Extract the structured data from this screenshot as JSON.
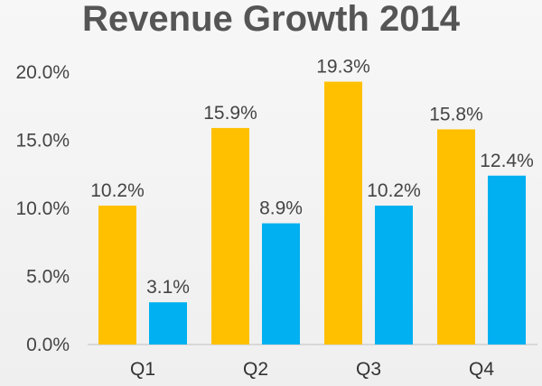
{
  "chart_data": {
    "type": "bar",
    "title": "Revenue Growth 2014",
    "categories": [
      "Q1",
      "Q2",
      "Q3",
      "Q4"
    ],
    "series": [
      {
        "values": [
          10.2,
          15.9,
          19.3,
          15.8
        ],
        "labels": [
          "10.2%",
          "15.9%",
          "19.3%",
          "15.8%"
        ],
        "color": "#FFC000"
      },
      {
        "values": [
          3.1,
          8.9,
          10.2,
          12.4
        ],
        "labels": [
          "3.1%",
          "8.9%",
          "10.2%",
          "12.4%"
        ],
        "color": "#00B0F0"
      }
    ],
    "ylim": [
      0,
      20
    ],
    "yticks": [
      0,
      5,
      10,
      15,
      20
    ],
    "ytick_labels": [
      "0.0%",
      "5.0%",
      "10.0%",
      "15.0%",
      "20.0%"
    ],
    "grid": false,
    "legend": "none",
    "xlabel": "",
    "ylabel": ""
  }
}
